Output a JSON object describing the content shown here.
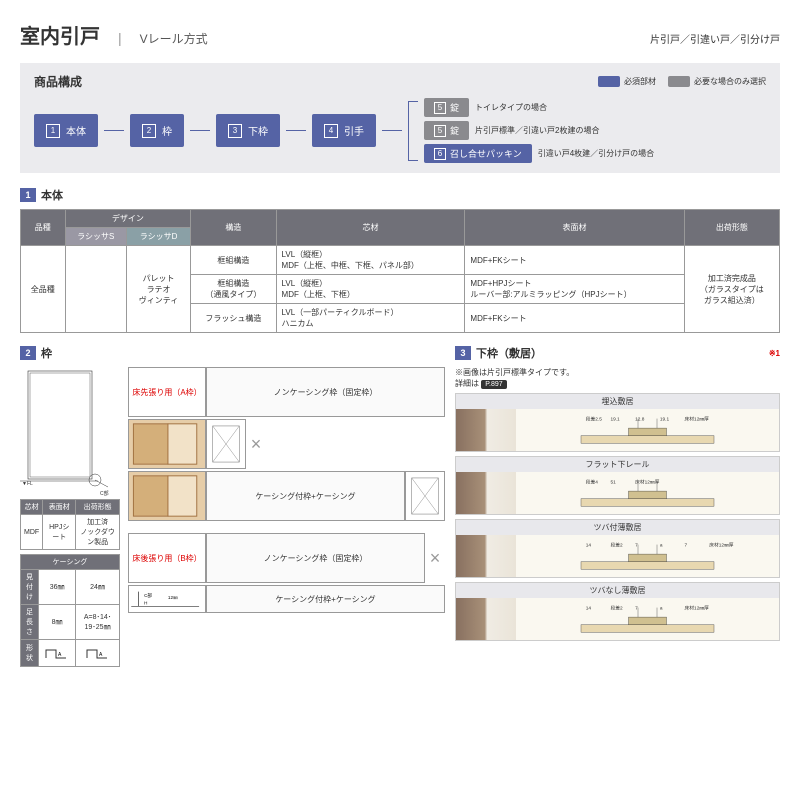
{
  "header": {
    "title": "室内引戸",
    "subtitle": "Vレール方式",
    "types": "片引戸／引違い戸／引分け戸"
  },
  "composition": {
    "title": "商品構成",
    "legend": {
      "required": "必須部材",
      "optional": "必要な場合のみ選択"
    },
    "colors": {
      "required": "#5563a5",
      "optional": "#8a8a8e"
    },
    "flow": [
      {
        "num": "1",
        "label": "本体"
      },
      {
        "num": "2",
        "label": "枠"
      },
      {
        "num": "3",
        "label": "下枠"
      },
      {
        "num": "4",
        "label": "引手"
      }
    ],
    "branches": [
      {
        "num": "5",
        "label": "錠",
        "color": "gray",
        "desc": "トイレタイプの場合"
      },
      {
        "num": "5",
        "label": "錠",
        "color": "gray",
        "desc": "片引戸標準／引違い戸2枚建の場合"
      },
      {
        "num": "6",
        "label": "召し合せパッキン",
        "color": "blue",
        "desc": "引違い戸4枚建／引分け戸の場合"
      }
    ]
  },
  "section1": {
    "num": "1",
    "title": "本体",
    "headers": {
      "variety": "品種",
      "design": "デザイン",
      "s": "ラシッサS",
      "d": "ラシッサD",
      "structure": "構造",
      "core": "芯材",
      "surface": "表面材",
      "shipping": "出荷形態"
    },
    "variety": "全品種",
    "designs": "パレット\nラテオ\nヴィンティ",
    "rows": [
      {
        "structure": "框組構造",
        "core": "LVL（縦框）\nMDF（上框、中框、下框、パネル部）",
        "surface": "MDF+FKシート",
        "shipping": ""
      },
      {
        "structure": "框組構造\n（通風タイプ）",
        "core": "LVL（縦框）\nMDF（上框、下框）",
        "surface": "MDF+HPJシート\nルーバー部:アルミラッピング（HPJシート）",
        "shipping": "加工済完成品\n（ガラスタイプは\nガラス組込済）"
      },
      {
        "structure": "フラッシュ構造",
        "core": "LVL（一部パーティクルボード）\nハニカム",
        "surface": "MDF+FKシート",
        "shipping": ""
      }
    ]
  },
  "section2": {
    "num": "2",
    "title": "枠",
    "door_labels": {
      "fl": "▼FL",
      "c": "C部"
    },
    "mini1": {
      "h": [
        "芯材",
        "表面材",
        "出荷形態"
      ],
      "r": [
        "MDF",
        "HPJシート",
        "加工済\nノックダウン製品"
      ]
    },
    "mini2": {
      "title": "ケーシング",
      "h1": "見付け",
      "v1": "36㎜",
      "v2": "24㎜",
      "h2": "足長さ",
      "v3": "8㎜",
      "v4": "A=8･14･19･25㎜",
      "h3": "形状"
    },
    "frame_types": {
      "a_label": "床先張り用（A枠）",
      "b_label": "床後張り用（B枠）",
      "noncasing": "ノンケーシング枠（固定枠）",
      "casing": "ケーシング付枠+ケーシング",
      "c_label": "C部",
      "h_label": "H",
      "h12": "12㎜"
    }
  },
  "section3": {
    "num": "3",
    "title": "下枠（敷居）",
    "note": "※1",
    "caption": "※画像は片引戸標準タイプです。",
    "detail": "詳細は",
    "page_ref": "P.897",
    "sills": [
      {
        "name": "埋込敷居",
        "labels": [
          "段差2.5",
          "19.1",
          "12.8",
          "19.1",
          "床材12㎜厚"
        ]
      },
      {
        "name": "フラット下レール",
        "labels": [
          "段差4",
          "51",
          "床材12㎜厚"
        ]
      },
      {
        "name": "ツバ付薄敷居",
        "labels": [
          "14",
          "段差2",
          "7",
          "a",
          "7",
          "床材12㎜厚"
        ]
      },
      {
        "name": "ツバなし薄敷居",
        "labels": [
          "14",
          "段差2",
          "7",
          "a",
          "床材12㎜厚"
        ]
      }
    ]
  }
}
